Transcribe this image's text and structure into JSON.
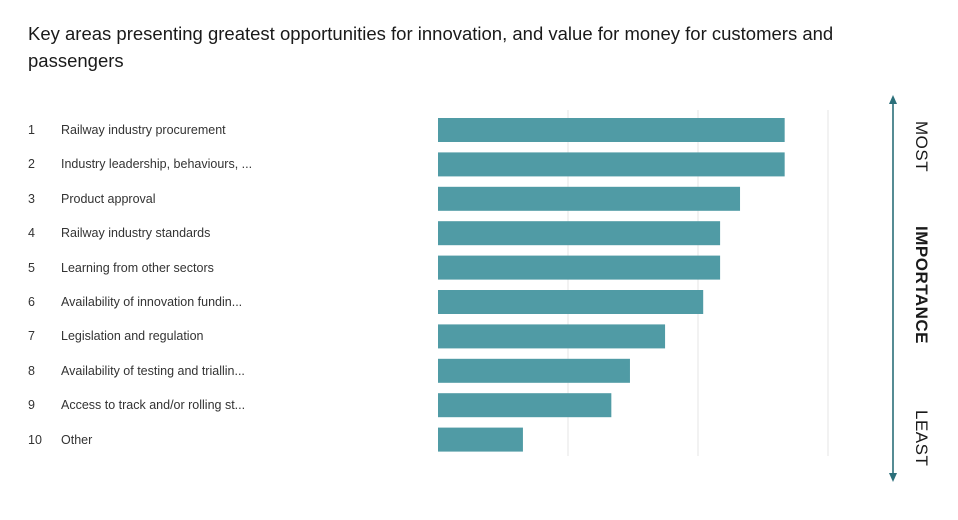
{
  "title": "Key areas presenting greatest opportunities for innovation, and value for money for customers and passengers",
  "chart_data": {
    "type": "bar",
    "orientation": "horizontal",
    "title": "Key areas presenting greatest opportunities for innovation, and value for money for customers and passengers",
    "ranks": [
      "1",
      "2",
      "3",
      "4",
      "5",
      "6",
      "7",
      "8",
      "9",
      "10"
    ],
    "categories": [
      "Railway industry procurement",
      "Industry leadership, behaviours, ...",
      "Product approval",
      "Railway industry standards",
      "Learning from other sectors",
      "Availability of innovation fundin...",
      "Legislation and regulation",
      "Availability of testing and triallin...",
      "Access to track and/or rolling st...",
      "Other"
    ],
    "values": [
      8.0,
      8.0,
      6.97,
      6.51,
      6.51,
      6.12,
      5.24,
      4.43,
      4.0,
      1.96
    ],
    "xlim": [
      0,
      9
    ],
    "gridlines": [
      3,
      6,
      9
    ],
    "bar_color": "#509ba5",
    "grid_color": "#e6e6e6",
    "importance_axis": {
      "top": "MOST",
      "middle": "IMPORTANCE",
      "bottom": "LEAST",
      "arrow_color": "#2b6f7a"
    }
  }
}
